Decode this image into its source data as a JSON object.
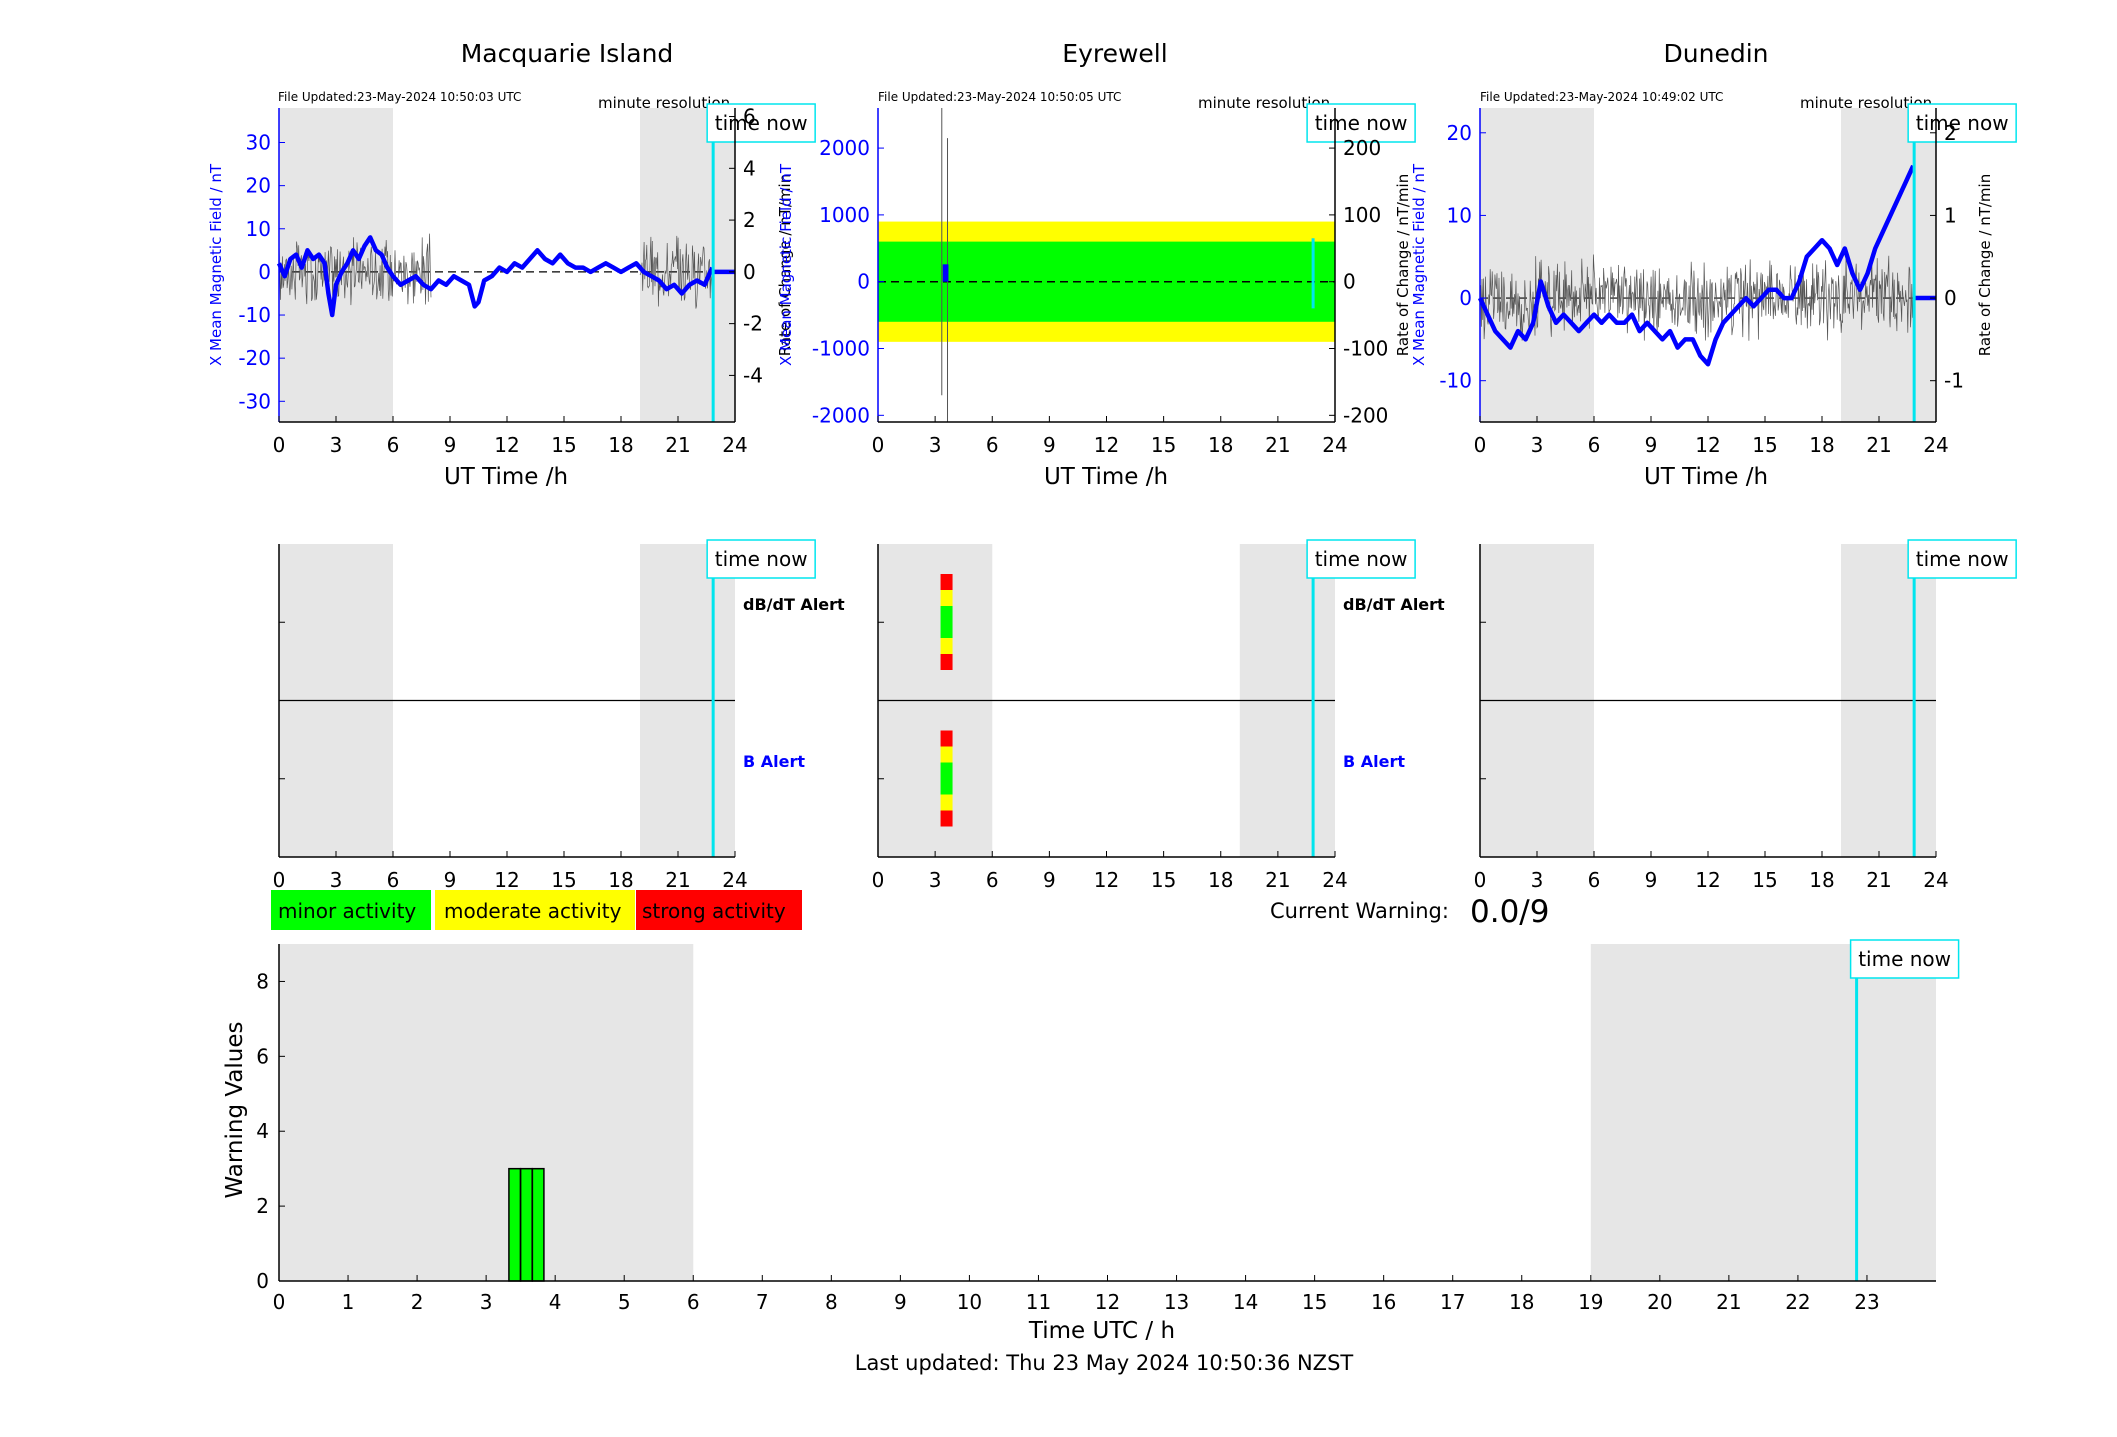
{
  "colors": {
    "blue": "#0000ff",
    "cyan": "#00e5ee",
    "night_shade": "#e6e6e6",
    "minor": "#00ff00",
    "moderate": "#ffff00",
    "strong": "#ff0000"
  },
  "time_now_label": "time now",
  "x_axis_label": "UT Time /h",
  "chart_data": [
    {
      "id": "macquarie",
      "type": "line",
      "title": "Macquarie Island",
      "file_updated": "File Updated:23-May-2024 10:50:03 UTC",
      "resolution": "minute resolution",
      "xlabel": "UT Time /h",
      "ylabel_left": "X Mean Magnetic Field / nT",
      "ylabel_right": "Rate of Change / nT/min",
      "xlim": [
        0,
        24
      ],
      "xticks": [
        0,
        3,
        6,
        9,
        12,
        15,
        18,
        21,
        24
      ],
      "ylim_left": [
        -34.8,
        38
      ],
      "yticks_left": [
        -30,
        -20,
        -10,
        0,
        10,
        20,
        30
      ],
      "ylim_right": [
        -5.8,
        6.33
      ],
      "yticks_right": [
        -4,
        -2,
        0,
        2,
        4,
        6
      ],
      "night_bands": [
        [
          0,
          6
        ],
        [
          19,
          24
        ]
      ],
      "time_now": 22.85,
      "series_mean": {
        "x": [
          0,
          0.3,
          0.6,
          0.9,
          1.2,
          1.5,
          1.8,
          2.1,
          2.4,
          2.6,
          2.8,
          3.0,
          3.3,
          3.6,
          3.9,
          4.2,
          4.5,
          4.8,
          5.1,
          5.4,
          5.7,
          6.0,
          6.4,
          6.8,
          7.2,
          7.6,
          8.0,
          8.4,
          8.8,
          9.2,
          9.6,
          10.0,
          10.3,
          10.5,
          10.8,
          11.2,
          11.6,
          12.0,
          12.4,
          12.8,
          13.2,
          13.6,
          14.0,
          14.4,
          14.8,
          15.2,
          15.6,
          16.0,
          16.4,
          16.8,
          17.2,
          17.6,
          18.0,
          18.4,
          18.8,
          19.2,
          19.6,
          20.0,
          20.4,
          20.8,
          21.2,
          21.6,
          22.0,
          22.4,
          22.8
        ],
        "y": [
          2,
          -1,
          3,
          4,
          1,
          5,
          3,
          4,
          2,
          -5,
          -10,
          -3,
          0,
          2,
          5,
          3,
          6,
          8,
          5,
          4,
          1,
          -1,
          -3,
          -2,
          -1,
          -3,
          -4,
          -2,
          -3,
          -1,
          -2,
          -3,
          -8,
          -7,
          -2,
          -1,
          1,
          0,
          2,
          1,
          3,
          5,
          3,
          2,
          4,
          2,
          1,
          1,
          0,
          1,
          2,
          1,
          0,
          1,
          2,
          0,
          -1,
          -2,
          -4,
          -3,
          -5,
          -3,
          -2,
          -3,
          1
        ]
      },
      "series_rate": {
        "amp": 1.6,
        "noisy_ranges": [
          [
            0,
            8
          ],
          [
            19,
            22.8
          ]
        ]
      },
      "flat_tail": {
        "x": [
          22.9,
          24
        ],
        "y": 0
      }
    },
    {
      "id": "eyrewell",
      "type": "line",
      "title": "Eyrewell",
      "file_updated": "File Updated:23-May-2024 10:50:05 UTC",
      "resolution": "minute resolution",
      "xlabel": "UT Time /h",
      "ylabel_left": "X Mean Magnetic Field / nT",
      "ylabel_right": "Rate of Change / nT/min",
      "xlim": [
        0,
        24
      ],
      "xticks": [
        0,
        3,
        6,
        9,
        12,
        15,
        18,
        21,
        24
      ],
      "ylim_left": [
        -2100,
        2600
      ],
      "yticks_left": [
        -2000,
        -1000,
        0,
        1000,
        2000
      ],
      "ylim_right": [
        -210,
        260
      ],
      "yticks_right": [
        -200,
        -100,
        0,
        100,
        200
      ],
      "night_bands": [
        [
          0,
          6
        ],
        [
          19,
          24
        ]
      ],
      "time_now": 22.85,
      "shade_ylim": [
        -700,
        700
      ],
      "activity_band": {
        "green": [
          -60,
          60
        ],
        "yellow": [
          -90,
          90
        ]
      },
      "spikes": [
        {
          "x": 3.35,
          "y": [
            -1700,
            2600
          ]
        },
        {
          "x": 3.65,
          "y": [
            -2100,
            2150
          ]
        }
      ],
      "mean_blip": {
        "x": [
          3.4,
          3.7
        ],
        "y": [
          0,
          260
        ]
      },
      "time_now_marker": [
        -400,
        650
      ]
    },
    {
      "id": "dunedin",
      "type": "line",
      "title": "Dunedin",
      "file_updated": "File Updated:23-May-2024 10:49:02 UTC",
      "resolution": "minute resolution",
      "xlabel": "UT Time /h",
      "ylabel_left": "X Mean Magnetic Field / nT",
      "ylabel_right": "Rate of Change / nT/min",
      "xlim": [
        0,
        24
      ],
      "xticks": [
        0,
        3,
        6,
        9,
        12,
        15,
        18,
        21,
        24
      ],
      "ylim_left": [
        -15,
        23
      ],
      "yticks_left": [
        -10,
        0,
        10,
        20
      ],
      "ylim_right": [
        -1.5,
        2.3
      ],
      "yticks_right": [
        -1,
        0,
        1,
        2
      ],
      "night_bands": [
        [
          0,
          6
        ],
        [
          19,
          24
        ]
      ],
      "time_now": 22.85,
      "series_mean": {
        "x": [
          0,
          0.4,
          0.8,
          1.2,
          1.6,
          2.0,
          2.4,
          2.8,
          3.2,
          3.6,
          4.0,
          4.4,
          4.8,
          5.2,
          5.6,
          6.0,
          6.4,
          6.8,
          7.2,
          7.6,
          8.0,
          8.4,
          8.8,
          9.2,
          9.6,
          10.0,
          10.4,
          10.8,
          11.2,
          11.6,
          12.0,
          12.4,
          12.8,
          13.2,
          13.6,
          14.0,
          14.4,
          14.8,
          15.2,
          15.6,
          16.0,
          16.4,
          16.8,
          17.2,
          17.6,
          18.0,
          18.4,
          18.8,
          19.2,
          19.6,
          20.0,
          20.4,
          20.8,
          21.2,
          21.6,
          22.0,
          22.4,
          22.8
        ],
        "y": [
          0,
          -2,
          -4,
          -5,
          -6,
          -4,
          -5,
          -3,
          2,
          -1,
          -3,
          -2,
          -3,
          -4,
          -3,
          -2,
          -3,
          -2,
          -3,
          -3,
          -2,
          -4,
          -3,
          -4,
          -5,
          -4,
          -6,
          -5,
          -5,
          -7,
          -8,
          -5,
          -3,
          -2,
          -1,
          0,
          -1,
          0,
          1,
          1,
          0,
          0,
          2,
          5,
          6,
          7,
          6,
          4,
          6,
          3,
          1,
          3,
          6,
          8,
          10,
          12,
          14,
          16
        ]
      },
      "series_rate": {
        "amp": 0.55,
        "noisy_ranges": [
          [
            0,
            22.8
          ]
        ]
      },
      "flat_tail": {
        "x": [
          22.9,
          24
        ],
        "y": 0
      }
    }
  ],
  "alert_panels": [
    {
      "id": "macquarie-alerts",
      "xlim": [
        0,
        24
      ],
      "xticks": [
        0,
        3,
        6,
        9,
        12,
        15,
        18,
        21,
        24
      ],
      "night_bands": [
        [
          0,
          6
        ],
        [
          19,
          24
        ]
      ],
      "time_now": 22.85,
      "dbdt_label": "dB/dT Alert",
      "b_label": "B Alert",
      "alert_bars": []
    },
    {
      "id": "eyrewell-alerts",
      "xlim": [
        0,
        24
      ],
      "xticks": [
        0,
        3,
        6,
        9,
        12,
        15,
        18,
        21,
        24
      ],
      "night_bands": [
        [
          0,
          6
        ],
        [
          19,
          24
        ]
      ],
      "time_now": 22.85,
      "dbdt_label": "dB/dT Alert",
      "b_label": "B Alert",
      "alert_bars": [
        {
          "row": "dbdt",
          "x": 3.6,
          "levels": [
            "strong",
            "moderate",
            "minor",
            "minor",
            "moderate",
            "strong"
          ]
        },
        {
          "row": "b",
          "x": 3.6,
          "levels": [
            "strong",
            "moderate",
            "minor",
            "minor",
            "moderate",
            "strong"
          ]
        }
      ]
    },
    {
      "id": "dunedin-alerts",
      "xlim": [
        0,
        24
      ],
      "xticks": [
        0,
        3,
        6,
        9,
        12,
        15,
        18,
        21,
        24
      ],
      "night_bands": [
        [
          0,
          6
        ],
        [
          19,
          24
        ]
      ],
      "time_now": 22.85,
      "dbdt_label": "",
      "b_label": "",
      "alert_bars": []
    }
  ],
  "legend": {
    "minor": "minor activity",
    "moderate": "moderate activity",
    "strong": "strong activity"
  },
  "current_warning": {
    "label": "Current Warning:",
    "value": "0.0/9"
  },
  "warning_chart": {
    "type": "bar",
    "xlabel": "Time UTC / h",
    "ylabel": "Warning Values",
    "xlim": [
      0,
      24
    ],
    "xticks": [
      0,
      1,
      2,
      3,
      4,
      5,
      6,
      7,
      8,
      9,
      10,
      11,
      12,
      13,
      14,
      15,
      16,
      17,
      18,
      19,
      20,
      21,
      22,
      23
    ],
    "ylim": [
      0,
      9
    ],
    "yticks": [
      0,
      2,
      4,
      6,
      8
    ],
    "night_bands": [
      [
        0,
        6
      ],
      [
        19,
        24
      ]
    ],
    "time_now": 22.85,
    "bars": [
      {
        "x": 3.33,
        "width": 0.167,
        "value": 3
      },
      {
        "x": 3.5,
        "width": 0.167,
        "value": 3
      },
      {
        "x": 3.67,
        "width": 0.167,
        "value": 3
      }
    ]
  },
  "footer": "Last updated: Thu 23 May 2024 10:50:36 NZST"
}
